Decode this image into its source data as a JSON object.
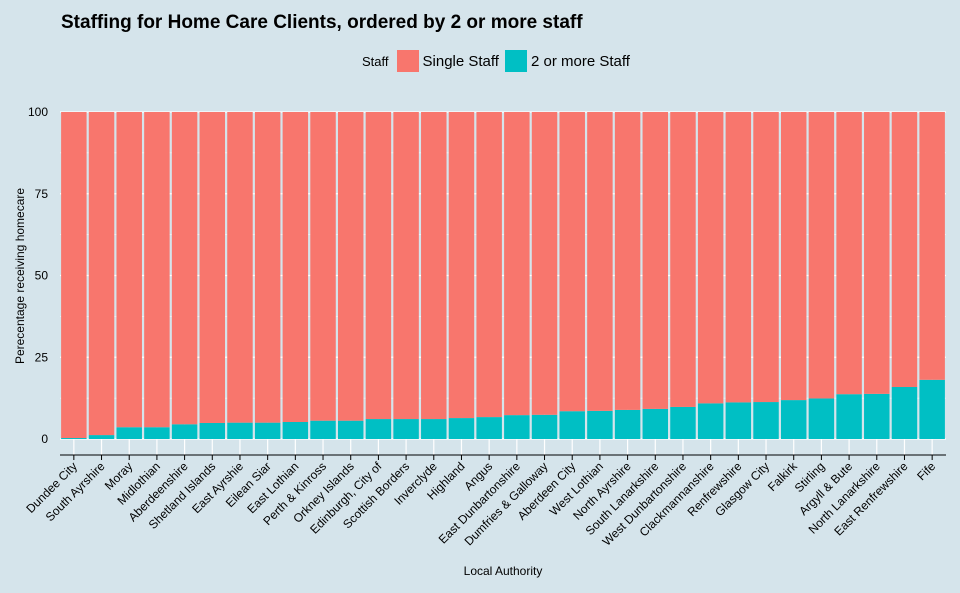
{
  "chart_data": {
    "type": "bar",
    "stacked": true,
    "title": "Staffing for Home Care Clients, ordered by 2 or more staff",
    "xlabel": "Local Authority",
    "ylabel": "Perecentage receiving homecare",
    "ylim": [
      0,
      100
    ],
    "yticks": [
      0,
      25,
      50,
      75,
      100
    ],
    "grid": true,
    "legend_position": "top",
    "legend_title": "Staff",
    "categories": [
      "Dundee City",
      "South Ayrshire",
      "Moray",
      "Midlothian",
      "Aberdeenshire",
      "Shetland Islands",
      "East Ayrshie",
      "Eilean Siar",
      "East Lothian",
      "Perth & Kinross",
      "Orkney Islands",
      "Edinburgh, City of",
      "Scottish Borders",
      "Inverclyde",
      "Highland",
      "Angus",
      "East Dunbartonshire",
      "Dumfries & Galloway",
      "Aberdeen City",
      "West Lothian",
      "North Ayrshire",
      "South Lanarkshire",
      "West Dunbartonshire",
      "Clackmannanshire",
      "Renfrewshire",
      "Glasgow City",
      "Falkirk",
      "Stirling",
      "Argyll & Bute",
      "North Lanarkshire",
      "East Renfrewshire",
      "Fife"
    ],
    "series": [
      {
        "name": "Single Staff",
        "color": "#f8766d",
        "values": [
          99.7,
          98.8,
          96.4,
          96.4,
          95.5,
          95.1,
          95.0,
          95.0,
          94.8,
          94.4,
          94.4,
          93.9,
          93.9,
          93.9,
          93.6,
          93.3,
          92.7,
          92.6,
          91.5,
          91.4,
          91.1,
          90.8,
          90.2,
          89.1,
          88.8,
          88.7,
          88.1,
          87.6,
          86.3,
          86.2,
          84.1,
          81.9
        ]
      },
      {
        "name": "2 or more Staff",
        "color": "#00bfc4",
        "values": [
          0.3,
          1.2,
          3.6,
          3.6,
          4.5,
          4.9,
          5.0,
          5.0,
          5.2,
          5.6,
          5.6,
          6.1,
          6.1,
          6.1,
          6.4,
          6.7,
          7.3,
          7.4,
          8.5,
          8.6,
          8.9,
          9.2,
          9.8,
          10.9,
          11.2,
          11.3,
          11.9,
          12.4,
          13.7,
          13.8,
          15.9,
          18.1
        ]
      }
    ]
  }
}
